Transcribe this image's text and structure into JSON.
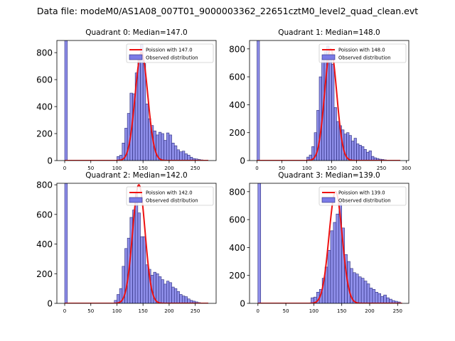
{
  "figure_title": "Data file: modeM0/AS1A08_007T01_9000003362_22651cztM0_level2_quad_clean.evt",
  "colors": {
    "bar_fill": "#7b7be6",
    "bar_edge": "#2b2b7a",
    "curve": "#ee1111",
    "axis": "#000000"
  },
  "chart_data": [
    {
      "type": "bar",
      "title": "Quadrant 0: Median=147.0",
      "legend": [
        "Poission with 147.0",
        "Observed distribution"
      ],
      "legend_position": "upper-right",
      "xlim": [
        -15,
        290
      ],
      "ylim": [
        0,
        890
      ],
      "xticks": [
        0,
        50,
        100,
        150,
        200,
        250
      ],
      "yticks": [
        0,
        200,
        400,
        600,
        800
      ],
      "bin_width": 5,
      "bins": [
        [
          0,
          890
        ],
        [
          100,
          30
        ],
        [
          105,
          40
        ],
        [
          110,
          130
        ],
        [
          115,
          240
        ],
        [
          120,
          350
        ],
        [
          125,
          500
        ],
        [
          130,
          495
        ],
        [
          135,
          650
        ],
        [
          140,
          780
        ],
        [
          145,
          860
        ],
        [
          150,
          720
        ],
        [
          155,
          420
        ],
        [
          160,
          310
        ],
        [
          165,
          260
        ],
        [
          170,
          220
        ],
        [
          175,
          190
        ],
        [
          180,
          210
        ],
        [
          185,
          200
        ],
        [
          190,
          150
        ],
        [
          195,
          205
        ],
        [
          200,
          190
        ],
        [
          205,
          130
        ],
        [
          210,
          110
        ],
        [
          215,
          80
        ],
        [
          220,
          65
        ],
        [
          225,
          70
        ],
        [
          230,
          50
        ],
        [
          235,
          40
        ],
        [
          240,
          25
        ],
        [
          245,
          15
        ],
        [
          250,
          12
        ],
        [
          255,
          8
        ],
        [
          260,
          5
        ]
      ],
      "poisson_mean": 147.0,
      "poisson_peak": 800,
      "poisson_range": [
        0,
        275
      ]
    },
    {
      "type": "bar",
      "title": "Quadrant 1: Median=148.0",
      "legend": [
        "Poission with 148.0",
        "Observed distribution"
      ],
      "legend_position": "upper-right",
      "xlim": [
        -15,
        305
      ],
      "ylim": [
        0,
        860
      ],
      "xticks": [
        0,
        50,
        100,
        150,
        200,
        250,
        300
      ],
      "yticks": [
        0,
        200,
        400,
        600,
        800
      ],
      "bin_width": 5,
      "bins": [
        [
          0,
          860
        ],
        [
          100,
          25
        ],
        [
          105,
          40
        ],
        [
          110,
          100
        ],
        [
          115,
          200
        ],
        [
          120,
          360
        ],
        [
          125,
          600
        ],
        [
          130,
          730
        ],
        [
          135,
          780
        ],
        [
          140,
          820
        ],
        [
          145,
          760
        ],
        [
          150,
          690
        ],
        [
          155,
          380
        ],
        [
          160,
          280
        ],
        [
          165,
          250
        ],
        [
          170,
          220
        ],
        [
          175,
          190
        ],
        [
          180,
          200
        ],
        [
          185,
          180
        ],
        [
          190,
          140
        ],
        [
          195,
          160
        ],
        [
          200,
          120
        ],
        [
          205,
          110
        ],
        [
          210,
          100
        ],
        [
          215,
          80
        ],
        [
          220,
          60
        ],
        [
          225,
          70
        ],
        [
          230,
          30
        ],
        [
          235,
          20
        ],
        [
          240,
          15
        ],
        [
          245,
          10
        ],
        [
          250,
          8
        ],
        [
          255,
          5
        ],
        [
          260,
          3
        ]
      ],
      "poisson_mean": 148.0,
      "poisson_peak": 800,
      "poisson_range": [
        0,
        288
      ]
    },
    {
      "type": "bar",
      "title": "Quadrant 2: Median=142.0",
      "legend": [
        "Poission with 142.0",
        "Observed distribution"
      ],
      "legend_position": "upper-right",
      "xlim": [
        -15,
        290
      ],
      "ylim": [
        0,
        810
      ],
      "xticks": [
        0,
        50,
        100,
        150,
        200,
        250
      ],
      "yticks": [
        0,
        200,
        400,
        600,
        800
      ],
      "bin_width": 5,
      "bins": [
        [
          0,
          810
        ],
        [
          95,
          20
        ],
        [
          100,
          60
        ],
        [
          105,
          100
        ],
        [
          110,
          250
        ],
        [
          115,
          370
        ],
        [
          120,
          440
        ],
        [
          125,
          580
        ],
        [
          130,
          630
        ],
        [
          135,
          750
        ],
        [
          140,
          610
        ],
        [
          145,
          450
        ],
        [
          150,
          450
        ],
        [
          155,
          260
        ],
        [
          160,
          230
        ],
        [
          165,
          190
        ],
        [
          170,
          210
        ],
        [
          175,
          200
        ],
        [
          180,
          180
        ],
        [
          185,
          160
        ],
        [
          190,
          130
        ],
        [
          195,
          150
        ],
        [
          200,
          140
        ],
        [
          205,
          110
        ],
        [
          210,
          100
        ],
        [
          215,
          80
        ],
        [
          220,
          60
        ],
        [
          225,
          50
        ],
        [
          230,
          45
        ],
        [
          235,
          30
        ],
        [
          240,
          20
        ],
        [
          245,
          15
        ],
        [
          250,
          10
        ],
        [
          255,
          5
        ]
      ],
      "poisson_mean": 142.0,
      "poisson_peak": 800,
      "poisson_range": [
        0,
        275
      ]
    },
    {
      "type": "bar",
      "title": "Quadrant 3: Median=139.0",
      "legend": [
        "Poission with 139.0",
        "Observed distribution"
      ],
      "legend_position": "upper-right",
      "xlim": [
        -15,
        270
      ],
      "ylim": [
        0,
        860
      ],
      "xticks": [
        0,
        50,
        100,
        150,
        200,
        250
      ],
      "yticks": [
        0,
        200,
        400,
        600,
        800
      ],
      "bin_width": 5,
      "bins": [
        [
          0,
          860
        ],
        [
          95,
          40
        ],
        [
          100,
          45
        ],
        [
          105,
          80
        ],
        [
          110,
          100
        ],
        [
          115,
          180
        ],
        [
          120,
          260
        ],
        [
          125,
          380
        ],
        [
          130,
          520
        ],
        [
          135,
          580
        ],
        [
          140,
          640
        ],
        [
          145,
          720
        ],
        [
          150,
          540
        ],
        [
          155,
          350
        ],
        [
          160,
          300
        ],
        [
          165,
          250
        ],
        [
          170,
          220
        ],
        [
          175,
          210
        ],
        [
          180,
          190
        ],
        [
          185,
          180
        ],
        [
          190,
          160
        ],
        [
          195,
          140
        ],
        [
          200,
          110
        ],
        [
          205,
          100
        ],
        [
          210,
          80
        ],
        [
          215,
          70
        ],
        [
          220,
          50
        ],
        [
          225,
          60
        ],
        [
          230,
          40
        ],
        [
          235,
          30
        ],
        [
          240,
          20
        ],
        [
          245,
          15
        ],
        [
          250,
          10
        ]
      ],
      "poisson_mean": 139.0,
      "poisson_peak": 800,
      "poisson_range": [
        0,
        258
      ]
    }
  ]
}
